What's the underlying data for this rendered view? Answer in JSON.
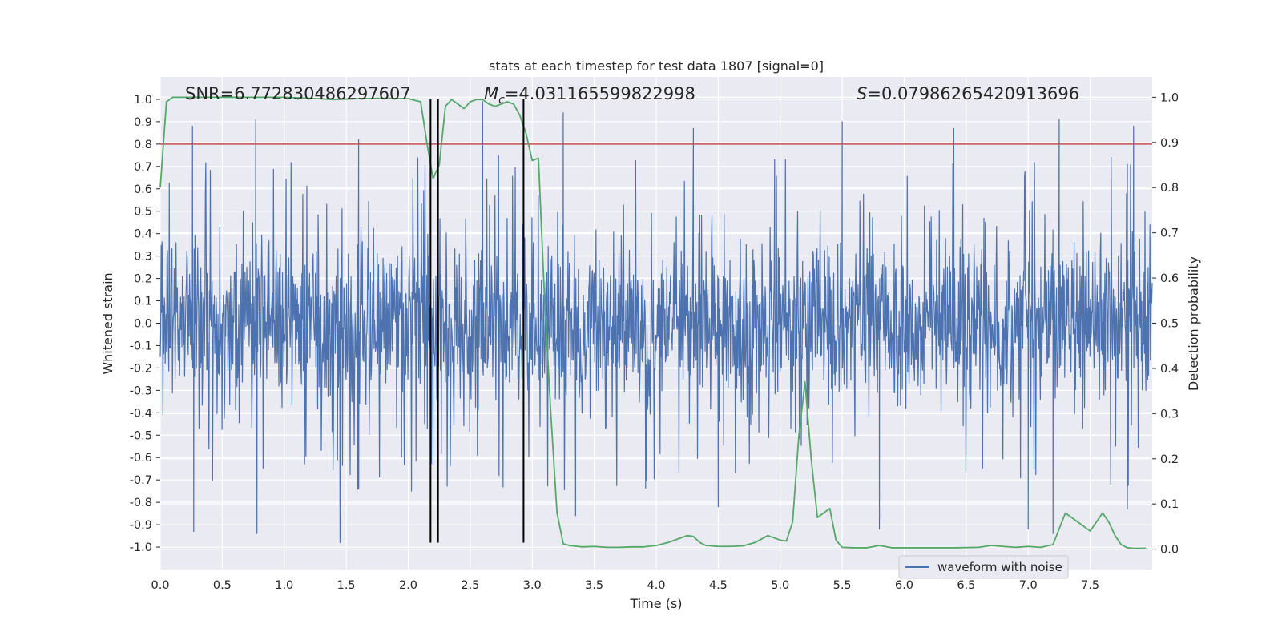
{
  "chart_data": {
    "type": "line",
    "title": "stats at each timestep for test data 1807 [signal=0]",
    "xlabel": "Time (s)",
    "ylabel_left": "Whitened strain",
    "ylabel_right": "Detection probability",
    "xlim": [
      0.0,
      8.0
    ],
    "ylim_left": [
      -1.1,
      1.1
    ],
    "ylim_right": [
      -0.045,
      1.045
    ],
    "x_ticks": [
      "0.0",
      "0.5",
      "1.0",
      "1.5",
      "2.0",
      "2.5",
      "3.0",
      "3.5",
      "4.0",
      "4.5",
      "5.0",
      "5.5",
      "6.0",
      "6.5",
      "7.0",
      "7.5"
    ],
    "y_ticks_left": [
      "1.0",
      "0.9",
      "0.8",
      "0.7",
      "0.6",
      "0.5",
      "0.4",
      "0.3",
      "0.2",
      "0.1",
      "0.0",
      "-0.1",
      "-0.2",
      "-0.3",
      "-0.4",
      "-0.5",
      "-0.6",
      "-0.7",
      "-0.8",
      "-0.9",
      "-1.0"
    ],
    "y_ticks_right": [
      "1.0",
      "0.9",
      "0.8",
      "0.7",
      "0.6",
      "0.5",
      "0.4",
      "0.3",
      "0.2",
      "0.1",
      "0.0"
    ],
    "grid": true,
    "legend_position": "lower-right",
    "annotations": {
      "snr": "SNR=6.772830486297607",
      "mc_symbol": "M",
      "mc_sub": "c",
      "mc_value": "=4.031165599822998",
      "s_symbol": "S",
      "s_value": "=0.07986265420913696"
    },
    "series": [
      {
        "name": "waveform with noise",
        "axis": "left",
        "color": "#4c72b0",
        "kind": "noise",
        "x_range": [
          0.0,
          8.0
        ],
        "typical_abs_max": 0.4,
        "peak_values_upper": [
          [
            0.26,
            0.88
          ],
          [
            0.77,
            0.91
          ],
          [
            1.6,
            0.82
          ],
          [
            2.6,
            0.99
          ],
          [
            3.25,
            0.94
          ],
          [
            4.3,
            0.87
          ],
          [
            5.5,
            0.9
          ],
          [
            6.4,
            0.87
          ],
          [
            7.25,
            0.91
          ],
          [
            7.85,
            0.88
          ]
        ],
        "peak_values_lower": [
          [
            0.27,
            -0.93
          ],
          [
            0.78,
            -0.94
          ],
          [
            1.45,
            -0.98
          ],
          [
            2.2,
            -0.63
          ],
          [
            3.35,
            -0.86
          ],
          [
            4.5,
            -0.82
          ],
          [
            5.8,
            -0.92
          ],
          [
            7.0,
            -0.92
          ],
          [
            7.2,
            -0.94
          ],
          [
            7.8,
            -0.83
          ]
        ]
      },
      {
        "name": "",
        "axis": "right",
        "color": "#55a868",
        "x": [
          0.0,
          0.05,
          0.1,
          0.2,
          0.4,
          0.6,
          0.8,
          1.0,
          1.2,
          1.4,
          1.6,
          1.8,
          2.0,
          2.1,
          2.15,
          2.2,
          2.25,
          2.3,
          2.35,
          2.4,
          2.45,
          2.5,
          2.55,
          2.6,
          2.65,
          2.7,
          2.75,
          2.8,
          2.85,
          2.9,
          2.95,
          3.0,
          3.05,
          3.1,
          3.15,
          3.2,
          3.25,
          3.3,
          3.4,
          3.5,
          3.6,
          3.7,
          3.8,
          3.9,
          4.0,
          4.1,
          4.2,
          4.25,
          4.3,
          4.35,
          4.4,
          4.5,
          4.6,
          4.7,
          4.8,
          4.9,
          5.0,
          5.05,
          5.1,
          5.15,
          5.2,
          5.25,
          5.3,
          5.35,
          5.4,
          5.45,
          5.5,
          5.6,
          5.7,
          5.8,
          5.9,
          6.0,
          6.2,
          6.4,
          6.6,
          6.7,
          6.8,
          6.9,
          7.0,
          7.1,
          7.2,
          7.3,
          7.35,
          7.4,
          7.5,
          7.6,
          7.65,
          7.7,
          7.75,
          7.8,
          7.85,
          7.9,
          7.95
        ],
        "values": [
          0.8,
          0.99,
          1.0,
          1.0,
          1.0,
          1.0,
          1.0,
          1.0,
          0.998,
          0.995,
          0.997,
          0.998,
          0.997,
          0.99,
          0.9,
          0.82,
          0.85,
          0.98,
          0.995,
          0.985,
          0.975,
          0.99,
          0.995,
          0.995,
          0.985,
          0.98,
          0.985,
          0.99,
          0.985,
          0.96,
          0.92,
          0.86,
          0.865,
          0.55,
          0.3,
          0.08,
          0.012,
          0.008,
          0.005,
          0.006,
          0.004,
          0.004,
          0.005,
          0.005,
          0.008,
          0.015,
          0.025,
          0.03,
          0.028,
          0.015,
          0.008,
          0.006,
          0.006,
          0.007,
          0.015,
          0.03,
          0.02,
          0.018,
          0.06,
          0.25,
          0.37,
          0.2,
          0.07,
          0.08,
          0.09,
          0.02,
          0.004,
          0.003,
          0.003,
          0.008,
          0.003,
          0.003,
          0.003,
          0.003,
          0.004,
          0.008,
          0.006,
          0.004,
          0.006,
          0.004,
          0.01,
          0.08,
          0.07,
          0.06,
          0.04,
          0.08,
          0.06,
          0.03,
          0.01,
          0.003,
          0.002,
          0.002,
          0.002
        ]
      },
      {
        "name": "",
        "axis": "left",
        "color": "#c44e52",
        "kind": "hline",
        "y": 0.8
      }
    ],
    "vlines": [
      2.18,
      2.24,
      2.93
    ],
    "vline_color": "#000000",
    "vline_range_left": [
      -0.98,
      1.0
    ]
  }
}
